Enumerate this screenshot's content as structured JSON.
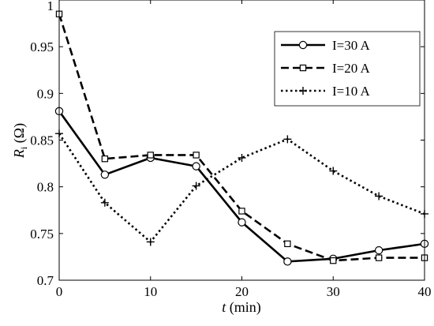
{
  "chart_data": {
    "type": "line",
    "xlabel": {
      "var": "t",
      "unit": " (min)"
    },
    "ylabel": {
      "var": "R",
      "sub": "i",
      "unit": " (Ω)"
    },
    "xlim": [
      0,
      40
    ],
    "ylim": [
      0.7,
      1.0
    ],
    "xticks": [
      0,
      10,
      20,
      30,
      40
    ],
    "yticks": [
      0.7,
      0.75,
      0.8,
      0.85,
      0.9,
      0.95,
      1.0
    ],
    "ytick_labels": [
      "0.7",
      "0.75",
      "0.8",
      "0.85",
      "0.9",
      "0.95",
      "1"
    ],
    "grid": false,
    "legend_position": "top-right",
    "x": [
      0,
      5,
      10,
      15,
      20,
      25,
      30,
      35,
      40
    ],
    "series": [
      {
        "name": "I=30 A",
        "style": "solid",
        "marker": "circle",
        "color": "#000000",
        "values": [
          0.881,
          0.813,
          0.831,
          0.822,
          0.762,
          0.72,
          0.723,
          0.732,
          0.739
        ]
      },
      {
        "name": "I=20 A",
        "style": "dashed",
        "marker": "square",
        "color": "#000000",
        "values": [
          0.985,
          0.83,
          0.834,
          0.834,
          0.774,
          0.739,
          0.721,
          0.724,
          0.724
        ]
      },
      {
        "name": "I=10 A",
        "style": "dotted",
        "marker": "plus",
        "color": "#000000",
        "values": [
          0.857,
          0.783,
          0.741,
          0.801,
          0.831,
          0.851,
          0.817,
          0.79,
          0.771
        ]
      }
    ]
  }
}
